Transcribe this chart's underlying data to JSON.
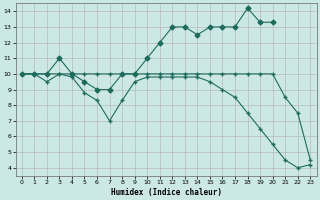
{
  "background_color": "#cce8e4",
  "grid_color": "#b0b0b0",
  "line_color": "#1e6b5e",
  "xlabel": "Humidex (Indice chaleur)",
  "xlim": [
    -0.5,
    23.5
  ],
  "ylim": [
    3.5,
    14.5
  ],
  "xticks": [
    0,
    1,
    2,
    3,
    4,
    5,
    6,
    7,
    8,
    9,
    10,
    11,
    12,
    13,
    14,
    15,
    16,
    17,
    18,
    19,
    20,
    21,
    22,
    23
  ],
  "yticks": [
    4,
    5,
    6,
    7,
    8,
    9,
    10,
    11,
    12,
    13,
    14
  ],
  "line_upper_x": [
    0,
    1,
    2,
    3,
    4,
    5,
    6,
    7,
    8,
    9,
    10,
    11,
    12,
    13,
    14,
    15,
    16,
    17,
    18,
    19,
    20
  ],
  "line_upper_y": [
    10,
    10,
    10,
    11,
    10,
    9.5,
    9,
    9,
    10,
    10,
    11,
    12,
    13,
    13,
    12.5,
    13,
    13,
    13,
    14.2,
    13.3,
    13.3
  ],
  "line_flat_x": [
    0,
    1,
    2,
    3,
    4,
    5,
    6,
    7,
    8,
    9,
    10,
    11,
    12,
    13,
    14,
    15,
    16,
    17,
    18,
    19,
    20,
    21,
    22,
    23
  ],
  "line_flat_y": [
    10,
    10,
    10,
    10,
    10,
    10,
    10,
    10,
    10,
    10,
    10,
    10,
    10,
    10,
    10,
    10,
    10,
    10,
    10,
    10,
    10,
    8.5,
    7.5,
    4.5
  ],
  "line_lower_x": [
    0,
    1,
    2,
    3,
    4,
    5,
    6,
    7,
    8,
    9,
    10,
    11,
    12,
    13,
    14,
    15,
    16,
    17,
    18,
    19,
    20,
    21,
    22,
    23
  ],
  "line_lower_y": [
    10,
    10,
    9.5,
    10,
    9.8,
    8.8,
    8.3,
    7,
    8.3,
    9.5,
    9.8,
    9.8,
    9.8,
    9.8,
    9.8,
    9.5,
    9,
    8.5,
    7.5,
    6.5,
    5.5,
    4.5,
    4,
    4.2
  ]
}
